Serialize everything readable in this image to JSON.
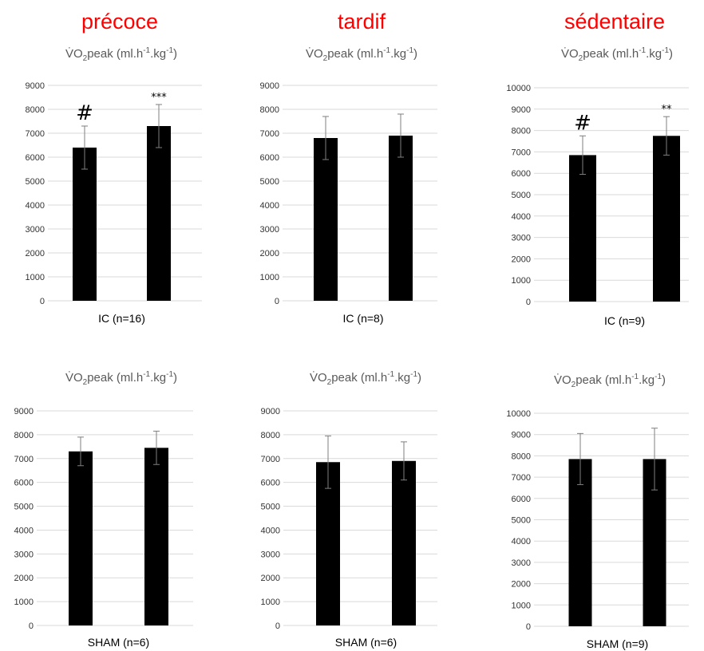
{
  "column_titles": [
    "précoce",
    "tardif",
    "sédentaire"
  ],
  "colors": {
    "column_title": "#ff0000",
    "bar": "#000000",
    "grid": "#d9d9d9",
    "error_bar": "#7f7f7f",
    "panel_title": "#595959"
  },
  "chart_data": [
    {
      "type": "bar",
      "title": "V̇O2peak (ml.h-1.kg-1)",
      "xlabel": "IC (n=16)",
      "ylim": [
        0,
        9000
      ],
      "yticks": [
        0,
        1000,
        2000,
        3000,
        4000,
        5000,
        6000,
        7000,
        8000,
        9000
      ],
      "values": [
        6400,
        7300
      ],
      "errors": [
        900,
        900
      ],
      "annotations": [
        "#",
        "***"
      ]
    },
    {
      "type": "bar",
      "title": "V̇O2peak (ml.h-1.kg-1)",
      "xlabel": "IC (n=8)",
      "ylim": [
        0,
        9000
      ],
      "yticks": [
        0,
        1000,
        2000,
        3000,
        4000,
        5000,
        6000,
        7000,
        8000,
        9000
      ],
      "values": [
        6800,
        6900
      ],
      "errors": [
        900,
        900
      ],
      "annotations": [
        "",
        ""
      ]
    },
    {
      "type": "bar",
      "title": "V̇O2peak (ml.h-1.kg-1)",
      "xlabel": "IC (n=9)",
      "ylim": [
        0,
        10000
      ],
      "yticks": [
        0,
        1000,
        2000,
        3000,
        4000,
        5000,
        6000,
        7000,
        8000,
        9000,
        10000
      ],
      "values": [
        6850,
        7750
      ],
      "errors": [
        900,
        900
      ],
      "annotations": [
        "#",
        "**"
      ]
    },
    {
      "type": "bar",
      "title": "V̇O2peak (ml.h-1.kg-1)",
      "xlabel": "SHAM (n=6)",
      "ylim": [
        0,
        9000
      ],
      "yticks": [
        0,
        1000,
        2000,
        3000,
        4000,
        5000,
        6000,
        7000,
        8000,
        9000
      ],
      "values": [
        7300,
        7450
      ],
      "errors": [
        600,
        700
      ],
      "annotations": [
        "",
        ""
      ]
    },
    {
      "type": "bar",
      "title": "V̇O2peak (ml.h-1.kg-1)",
      "xlabel": "SHAM (n=6)",
      "ylim": [
        0,
        9000
      ],
      "yticks": [
        0,
        1000,
        2000,
        3000,
        4000,
        5000,
        6000,
        7000,
        8000,
        9000
      ],
      "values": [
        6850,
        6900
      ],
      "errors": [
        1100,
        800
      ],
      "annotations": [
        "",
        ""
      ]
    },
    {
      "type": "bar",
      "title": "V̇O2peak (ml.h-1.kg-1)",
      "xlabel": "SHAM (n=9)",
      "ylim": [
        0,
        10000
      ],
      "yticks": [
        0,
        1000,
        2000,
        3000,
        4000,
        5000,
        6000,
        7000,
        8000,
        9000,
        10000
      ],
      "values": [
        7850,
        7850
      ],
      "errors": [
        1200,
        1450
      ],
      "annotations": [
        "",
        ""
      ]
    }
  ]
}
